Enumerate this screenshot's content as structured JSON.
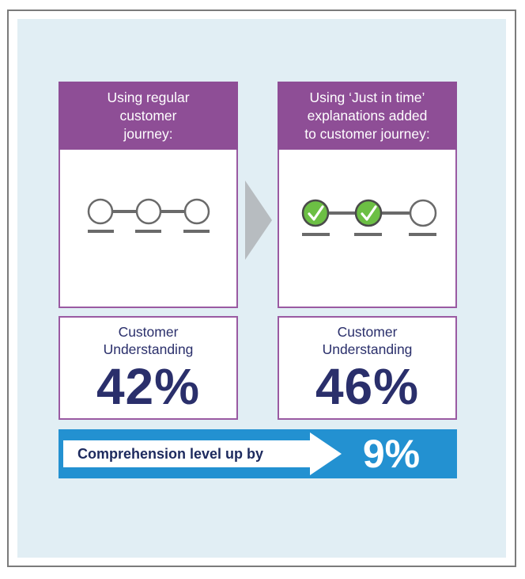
{
  "left": {
    "header": [
      "Using regular",
      "customer",
      "journey:"
    ],
    "stat_label": [
      "Customer",
      "Understanding"
    ],
    "stat_value": "42%"
  },
  "right": {
    "header": [
      "Using ‘Just in time’",
      "explanations added",
      "to customer journey:"
    ],
    "stat_label": [
      "Customer",
      "Understanding"
    ],
    "stat_value": "46%"
  },
  "banner": {
    "label": "Comprehension level up by",
    "value": "9%"
  },
  "colors": {
    "header_purple": "#8e4e96",
    "border_purple": "#9a5aa2",
    "stat_navy": "#2a2f6b",
    "check_green": "#6cbf44",
    "banner_blue": "#2391d1",
    "panel_bg": "#e1eef4"
  },
  "icons": {
    "step_done": "check-circle-icon",
    "step_pending": "empty-circle-icon",
    "flow_arrow": "chevron-right-icon"
  }
}
